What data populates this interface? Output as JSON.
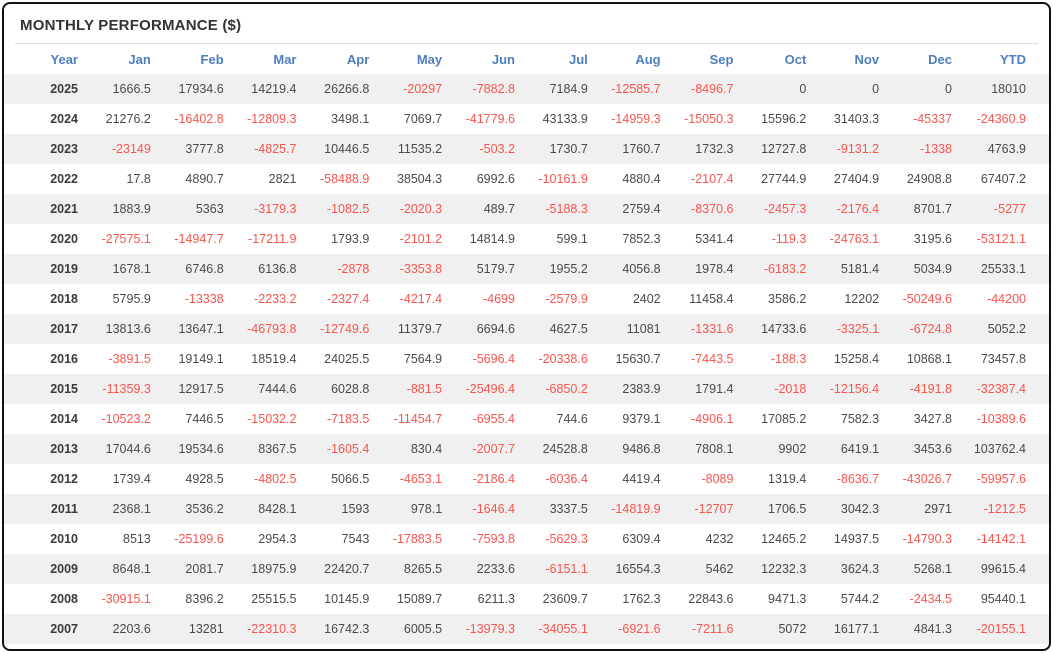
{
  "panel": {
    "title": "MONTHLY PERFORMANCE ($)"
  },
  "colors": {
    "header_text": "#4d7ec0",
    "positive_value": "#4a4a4a",
    "negative_value": "#f9544e",
    "row_stripe": "#f0f0f0",
    "panel_border": "#111111"
  },
  "chart_data": {
    "type": "table",
    "title": "MONTHLY PERFORMANCE ($)",
    "columns": [
      "Year",
      "Jan",
      "Feb",
      "Mar",
      "Apr",
      "May",
      "Jun",
      "Jul",
      "Aug",
      "Sep",
      "Oct",
      "Nov",
      "Dec",
      "YTD"
    ],
    "rows": [
      {
        "year": "2025",
        "values": [
          "1666.5",
          "17934.6",
          "14219.4",
          "26266.8",
          "-20297",
          "-7882.8",
          "7184.9",
          "-12585.7",
          "-8496.7",
          "0",
          "0",
          "0",
          "18010"
        ]
      },
      {
        "year": "2024",
        "values": [
          "21276.2",
          "-16402.8",
          "-12809.3",
          "3498.1",
          "7069.7",
          "-41779.6",
          "43133.9",
          "-14959.3",
          "-15050.3",
          "15596.2",
          "31403.3",
          "-45337",
          "-24360.9"
        ]
      },
      {
        "year": "2023",
        "values": [
          "-23149",
          "3777.8",
          "-4825.7",
          "10446.5",
          "11535.2",
          "-503.2",
          "1730.7",
          "1760.7",
          "1732.3",
          "12727.8",
          "-9131.2",
          "-1338",
          "4763.9"
        ]
      },
      {
        "year": "2022",
        "values": [
          "17.8",
          "4890.7",
          "2821",
          "-58488.9",
          "38504.3",
          "6992.6",
          "-10161.9",
          "4880.4",
          "-2107.4",
          "27744.9",
          "27404.9",
          "24908.8",
          "67407.2"
        ]
      },
      {
        "year": "2021",
        "values": [
          "1883.9",
          "5363",
          "-3179.3",
          "-1082.5",
          "-2020.3",
          "489.7",
          "-5188.3",
          "2759.4",
          "-8370.6",
          "-2457.3",
          "-2176.4",
          "8701.7",
          "-5277"
        ]
      },
      {
        "year": "2020",
        "values": [
          "-27575.1",
          "-14947.7",
          "-17211.9",
          "1793.9",
          "-2101.2",
          "14814.9",
          "599.1",
          "7852.3",
          "5341.4",
          "-119.3",
          "-24763.1",
          "3195.6",
          "-53121.1"
        ]
      },
      {
        "year": "2019",
        "values": [
          "1678.1",
          "6746.8",
          "6136.8",
          "-2878",
          "-3353.8",
          "5179.7",
          "1955.2",
          "4056.8",
          "1978.4",
          "-6183.2",
          "5181.4",
          "5034.9",
          "25533.1"
        ]
      },
      {
        "year": "2018",
        "values": [
          "5795.9",
          "-13338",
          "-2233.2",
          "-2327.4",
          "-4217.4",
          "-4699",
          "-2579.9",
          "2402",
          "11458.4",
          "3586.2",
          "12202",
          "-50249.6",
          "-44200"
        ]
      },
      {
        "year": "2017",
        "values": [
          "13813.6",
          "13647.1",
          "-46793.8",
          "-12749.6",
          "11379.7",
          "6694.6",
          "4627.5",
          "11081",
          "-1331.6",
          "14733.6",
          "-3325.1",
          "-6724.8",
          "5052.2"
        ]
      },
      {
        "year": "2016",
        "values": [
          "-3891.5",
          "19149.1",
          "18519.4",
          "24025.5",
          "7564.9",
          "-5696.4",
          "-20338.6",
          "15630.7",
          "-7443.5",
          "-188.3",
          "15258.4",
          "10868.1",
          "73457.8"
        ]
      },
      {
        "year": "2015",
        "values": [
          "-11359.3",
          "12917.5",
          "7444.6",
          "6028.8",
          "-881.5",
          "-25496.4",
          "-6850.2",
          "2383.9",
          "1791.4",
          "-2018",
          "-12156.4",
          "-4191.8",
          "-32387.4"
        ]
      },
      {
        "year": "2014",
        "values": [
          "-10523.2",
          "7446.5",
          "-15032.2",
          "-7183.5",
          "-11454.7",
          "-6955.4",
          "744.6",
          "9379.1",
          "-4906.1",
          "17085.2",
          "7582.3",
          "3427.8",
          "-10389.6"
        ]
      },
      {
        "year": "2013",
        "values": [
          "17044.6",
          "19534.6",
          "8367.5",
          "-1605.4",
          "830.4",
          "-2007.7",
          "24528.8",
          "9486.8",
          "7808.1",
          "9902",
          "6419.1",
          "3453.6",
          "103762.4"
        ]
      },
      {
        "year": "2012",
        "values": [
          "1739.4",
          "4928.5",
          "-4802.5",
          "5066.5",
          "-4653.1",
          "-2186.4",
          "-6036.4",
          "4419.4",
          "-8089",
          "1319.4",
          "-8636.7",
          "-43026.7",
          "-59957.6"
        ]
      },
      {
        "year": "2011",
        "values": [
          "2368.1",
          "3536.2",
          "8428.1",
          "1593",
          "978.1",
          "-1646.4",
          "3337.5",
          "-14819.9",
          "-12707",
          "1706.5",
          "3042.3",
          "2971",
          "-1212.5"
        ]
      },
      {
        "year": "2010",
        "values": [
          "8513",
          "-25199.6",
          "2954.3",
          "7543",
          "-17883.5",
          "-7593.8",
          "-5629.3",
          "6309.4",
          "4232",
          "12465.2",
          "14937.5",
          "-14790.3",
          "-14142.1"
        ]
      },
      {
        "year": "2009",
        "values": [
          "8648.1",
          "2081.7",
          "18975.9",
          "22420.7",
          "8265.5",
          "2233.6",
          "-6151.1",
          "16554.3",
          "5462",
          "12232.3",
          "3624.3",
          "5268.1",
          "99615.4"
        ]
      },
      {
        "year": "2008",
        "values": [
          "-30915.1",
          "8396.2",
          "25515.5",
          "10145.9",
          "15089.7",
          "6211.3",
          "23609.7",
          "1762.3",
          "22843.6",
          "9471.3",
          "5744.2",
          "-2434.5",
          "95440.1"
        ]
      },
      {
        "year": "2007",
        "values": [
          "2203.6",
          "13281",
          "-22310.3",
          "16742.3",
          "6005.5",
          "-13979.3",
          "-34055.1",
          "-6921.6",
          "-7211.6",
          "5072",
          "16177.1",
          "4841.3",
          "-20155.1"
        ]
      }
    ]
  }
}
